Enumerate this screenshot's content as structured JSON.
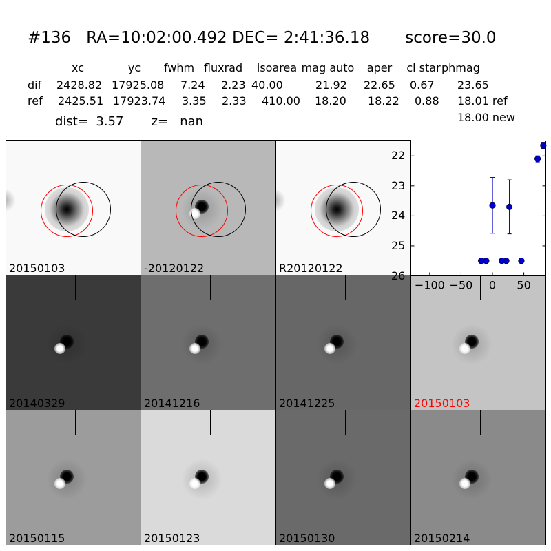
{
  "header": {
    "title": "#136   RA=10:02:00.492 DEC= 2:41:36.18       score=30.0",
    "col_headers": [
      "xc",
      "yc",
      "fwhm",
      "fluxrad",
      "isoarea",
      "mag auto",
      "aper",
      "cl star",
      "phmag"
    ],
    "rows": [
      {
        "label": "dif",
        "values": [
          "2428.82",
          "17925.08",
          "7.24",
          "2.23",
          "40.00",
          "21.92",
          "22.65",
          "0.67",
          "23.65"
        ]
      },
      {
        "label": "ref",
        "values": [
          "2425.51",
          "17923.74",
          "3.35",
          "2.33",
          "410.00",
          "18.20",
          "18.22",
          "0.88",
          "18.01 ref"
        ]
      }
    ],
    "dist_line": "dist=  3.57       z=   nan",
    "phmag_new": "18.00 new"
  },
  "panels": [
    {
      "label": "20150103",
      "style": "star",
      "circles": true
    },
    {
      "label": "-20120122",
      "style": "dif",
      "circles": true
    },
    {
      "label": "R20120122",
      "style": "star",
      "circles": true
    },
    {
      "label": "20140329",
      "style": "dark"
    },
    {
      "label": "20141216",
      "style": "mid"
    },
    {
      "label": "20141225",
      "style": "mid2"
    },
    {
      "label": "20150103",
      "style": "light",
      "highlight": true
    },
    {
      "label": "20150115",
      "style": "gray"
    },
    {
      "label": "20150123",
      "style": "bright"
    },
    {
      "label": "20150130",
      "style": "noisy"
    },
    {
      "label": "20150214",
      "style": "gray2"
    }
  ],
  "colors": {
    "highlight": "#ff0000",
    "points": "#0000cc",
    "circle_red": "#ff0000",
    "circle_black": "#000000"
  },
  "chart_data": {
    "type": "scatter",
    "title": "",
    "xlabel": "",
    "ylabel": "",
    "xlim": [
      -130,
      85
    ],
    "ylim": [
      26,
      21.5
    ],
    "y_inverted": true,
    "xticks": [
      -100,
      -50,
      0,
      50
    ],
    "yticks": [
      22,
      23,
      24,
      25,
      26
    ],
    "grid": false,
    "points": [
      {
        "x": -18,
        "y": 25.5,
        "err": 0
      },
      {
        "x": -10,
        "y": 25.5,
        "err": 0
      },
      {
        "x": 0,
        "y": 23.65,
        "err": 0.93
      },
      {
        "x": 15,
        "y": 25.5,
        "err": 0
      },
      {
        "x": 22,
        "y": 25.5,
        "err": 0
      },
      {
        "x": 27,
        "y": 23.7,
        "err": 0.9
      },
      {
        "x": 46,
        "y": 25.5,
        "err": 0
      },
      {
        "x": 72,
        "y": 22.1,
        "err": 0.1
      },
      {
        "x": 81,
        "y": 21.65,
        "err": 0.1
      }
    ]
  }
}
